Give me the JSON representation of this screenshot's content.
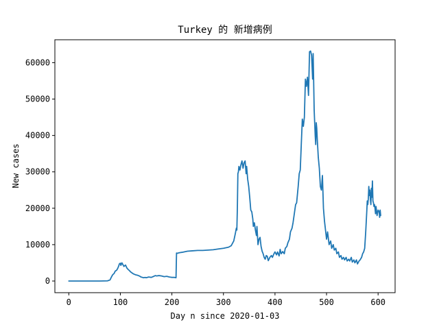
{
  "chart_data": {
    "type": "line",
    "title": "Turkey 的 新增病例",
    "xlabel": "Day n since 2020-01-03",
    "ylabel": "New cases",
    "xlim": [
      -27,
      633
    ],
    "ylim": [
      -3200,
      66300
    ],
    "xticks": [
      0,
      100,
      200,
      300,
      400,
      500,
      600
    ],
    "yticks": [
      0,
      10000,
      20000,
      30000,
      40000,
      50000,
      60000
    ],
    "xtick_labels": [
      "0",
      "100",
      "200",
      "300",
      "400",
      "500",
      "600"
    ],
    "ytick_labels": [
      "0",
      "10000",
      "20000",
      "30000",
      "40000",
      "50000",
      "60000"
    ],
    "grid": false,
    "line_color": "#1f77b4",
    "series": [
      {
        "x": [
          0,
          20,
          40,
          60,
          75,
          80,
          82,
          85,
          88,
          90,
          93,
          95,
          97,
          98,
          100,
          101,
          103,
          105,
          107,
          110,
          113,
          115,
          118,
          120,
          123,
          125,
          128,
          130,
          133,
          135,
          138,
          140,
          143,
          145,
          148,
          150,
          155,
          160,
          165,
          168,
          170,
          175,
          180,
          185,
          190,
          195,
          200,
          205,
          208,
          209,
          210,
          215,
          220,
          230,
          240,
          250,
          260,
          270,
          280,
          290,
          300,
          310,
          315,
          320,
          323,
          325,
          326,
          327,
          328,
          329,
          330,
          332,
          334,
          336,
          338,
          340,
          342,
          344,
          345,
          347,
          349,
          351,
          353,
          355,
          357,
          358,
          360,
          362,
          364,
          365,
          367,
          369,
          371,
          373,
          375,
          377,
          379,
          381,
          383,
          385,
          387,
          390,
          393,
          395,
          398,
          400,
          403,
          405,
          408,
          410,
          412,
          415,
          418,
          420,
          423,
          425,
          428,
          430,
          433,
          435,
          438,
          440,
          442,
          445,
          447,
          449,
          451,
          453,
          455,
          457,
          459,
          461,
          463,
          465,
          467,
          469,
          471,
          473,
          474,
          475,
          476,
          477,
          478,
          479,
          480,
          481,
          482,
          484,
          486,
          488,
          490,
          492,
          494,
          496,
          498,
          500,
          502,
          505,
          508,
          510,
          513,
          515,
          518,
          520,
          523,
          525,
          528,
          530,
          533,
          535,
          538,
          540,
          543,
          545,
          548,
          550,
          553,
          555,
          558,
          560,
          563,
          565,
          568,
          570,
          572,
          574,
          576,
          578,
          579,
          580,
          581,
          582,
          583,
          584,
          585,
          586,
          587,
          588,
          589,
          590,
          591,
          592,
          593,
          594,
          595,
          596,
          598,
          600,
          602,
          603,
          604,
          605
        ],
        "y": [
          0,
          0,
          0,
          0,
          50,
          300,
          900,
          1700,
          2100,
          2700,
          3000,
          3500,
          4200,
          4700,
          4900,
          4300,
          5000,
          4500,
          4000,
          4400,
          3500,
          3200,
          2800,
          2500,
          2200,
          2000,
          1800,
          1700,
          1600,
          1500,
          1300,
          1100,
          1000,
          900,
          1000,
          900,
          1100,
          1000,
          1300,
          1500,
          1400,
          1500,
          1400,
          1200,
          1300,
          1100,
          1000,
          1000,
          900,
          7700,
          7600,
          7800,
          7900,
          8200,
          8300,
          8400,
          8400,
          8500,
          8600,
          8800,
          9000,
          9300,
          9700,
          11000,
          13000,
          14500,
          14000,
          20000,
          29500,
          30000,
          31500,
          30500,
          32000,
          33000,
          31000,
          32500,
          33000,
          29500,
          31500,
          28000,
          26000,
          23000,
          19500,
          19000,
          17000,
          15000,
          16000,
          14000,
          12500,
          15000,
          10000,
          11500,
          12000,
          9500,
          8200,
          7500,
          6500,
          6000,
          7000,
          6800,
          5600,
          6500,
          7000,
          6500,
          7500,
          8000,
          7200,
          8000,
          6900,
          8700,
          7500,
          8100,
          7500,
          9000,
          9500,
          10500,
          11500,
          13500,
          14500,
          16000,
          19000,
          21000,
          21500,
          26000,
          29500,
          30500,
          37500,
          44500,
          42500,
          45000,
          55500,
          53500,
          56000,
          51000,
          63000,
          63200,
          62000,
          55500,
          62500,
          55000,
          47000,
          43500,
          40000,
          37500,
          43500,
          42000,
          39000,
          34000,
          31000,
          26000,
          25000,
          29000,
          20000,
          16500,
          14000,
          11500,
          13500,
          10000,
          11000,
          9000,
          10000,
          8500,
          9000,
          7500,
          8000,
          6500,
          7000,
          6000,
          6500,
          5800,
          6500,
          5500,
          6000,
          5500,
          6500,
          5200,
          5800,
          5000,
          5800,
          4700,
          5500,
          5800,
          6500,
          7500,
          8000,
          9000,
          13500,
          19000,
          22000,
          21000,
          22500,
          26000,
          23500,
          25000,
          22500,
          21000,
          25500,
          23000,
          27500,
          22000,
          21500,
          20500,
          21000,
          20000,
          18500,
          20500,
          18000,
          19500,
          19000,
          17500,
          19500,
          18000
        ]
      }
    ]
  }
}
